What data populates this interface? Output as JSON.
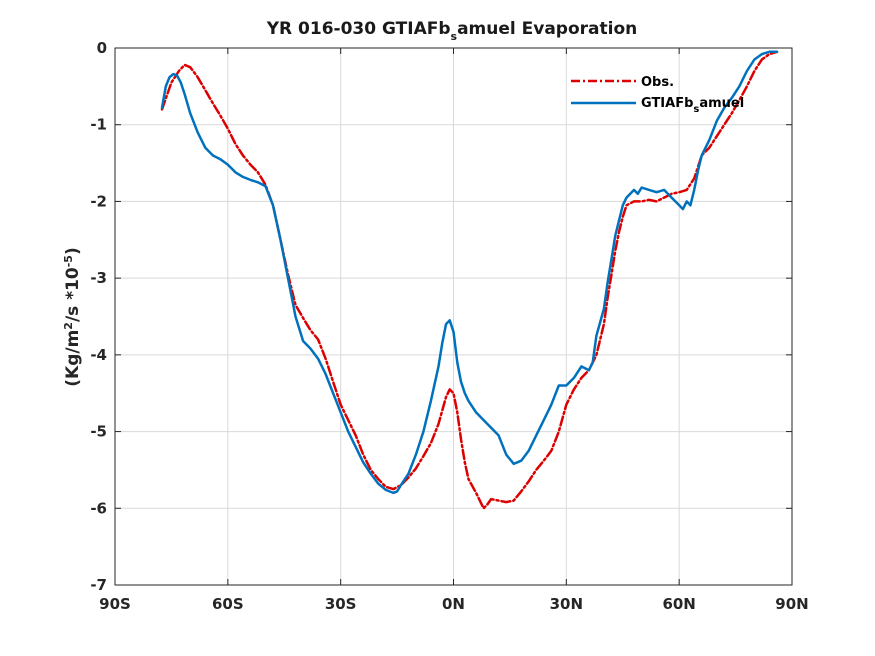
{
  "chart_data": {
    "type": "line",
    "title_main": "YR 016-030 GTIAFb",
    "title_sub": "s",
    "title_rest": "amuel Evaporation",
    "ylabel_pre": "(Kg/m",
    "ylabel_sup1": "2",
    "ylabel_mid": "/s *10",
    "ylabel_sup2": "-5",
    "ylabel_post": ")",
    "xlim": [
      -90,
      90
    ],
    "ylim": [
      -7,
      0
    ],
    "x_ticks": [
      -90,
      -60,
      -30,
      0,
      30,
      60,
      90
    ],
    "x_tick_labels": [
      "90S",
      "60S",
      "30S",
      "0N",
      "30N",
      "60N",
      "90N"
    ],
    "y_ticks": [
      0,
      -1,
      -2,
      -3,
      -4,
      -5,
      -6,
      -7
    ],
    "y_tick_labels": [
      "0",
      "-1",
      "-2",
      "-3",
      "-4",
      "-5",
      "-6",
      "-7"
    ],
    "grid": true,
    "legend_position": "top-right",
    "series": [
      {
        "name": "Obs.",
        "color": "#dd0000",
        "style": "dashdot",
        "legend_main": "Obs.",
        "x": [
          -77.5,
          -75,
          -73,
          -71.5,
          -70,
          -68,
          -66,
          -64,
          -62,
          -60,
          -58,
          -56,
          -54,
          -52,
          -50,
          -48,
          -46,
          -44,
          -42,
          -40,
          -38,
          -36,
          -34,
          -32,
          -30,
          -28,
          -26,
          -24,
          -22,
          -20,
          -18,
          -16,
          -14,
          -12,
          -10,
          -8,
          -6,
          -4,
          -2,
          -1,
          0,
          1,
          2,
          3,
          4,
          6,
          8,
          9,
          10,
          12,
          14,
          16,
          18,
          20,
          22,
          24,
          26,
          28,
          30,
          32,
          34,
          36,
          38,
          40,
          41,
          42,
          43,
          44,
          45,
          46,
          48,
          50,
          52,
          54,
          56,
          58,
          60,
          62,
          64,
          65,
          66,
          68,
          70,
          72,
          74,
          76,
          78,
          80,
          82,
          84,
          86
        ],
        "values": [
          -0.8,
          -0.45,
          -0.3,
          -0.22,
          -0.25,
          -0.38,
          -0.55,
          -0.72,
          -0.88,
          -1.05,
          -1.25,
          -1.4,
          -1.52,
          -1.62,
          -1.78,
          -2.05,
          -2.5,
          -2.95,
          -3.35,
          -3.52,
          -3.68,
          -3.8,
          -4.05,
          -4.35,
          -4.65,
          -4.85,
          -5.05,
          -5.3,
          -5.5,
          -5.62,
          -5.72,
          -5.75,
          -5.7,
          -5.6,
          -5.48,
          -5.32,
          -5.15,
          -4.9,
          -4.55,
          -4.45,
          -4.5,
          -4.75,
          -5.1,
          -5.4,
          -5.62,
          -5.8,
          -6.0,
          -5.95,
          -5.88,
          -5.9,
          -5.92,
          -5.9,
          -5.78,
          -5.65,
          -5.5,
          -5.38,
          -5.25,
          -5.0,
          -4.65,
          -4.45,
          -4.3,
          -4.2,
          -4.0,
          -3.6,
          -3.25,
          -2.95,
          -2.65,
          -2.4,
          -2.2,
          -2.05,
          -2.0,
          -2.0,
          -1.98,
          -2.0,
          -1.95,
          -1.9,
          -1.88,
          -1.85,
          -1.7,
          -1.55,
          -1.4,
          -1.3,
          -1.15,
          -1.0,
          -0.85,
          -0.68,
          -0.5,
          -0.3,
          -0.15,
          -0.08,
          -0.05
        ]
      },
      {
        "name": "GTIAFb samuel",
        "color": "#0072bd",
        "style": "solid",
        "legend_main": "GTIAFb",
        "legend_sub": "s",
        "legend_rest": "amuel",
        "x": [
          -77.5,
          -76.5,
          -75.5,
          -74.5,
          -73.5,
          -72.5,
          -71.5,
          -70,
          -68,
          -66,
          -64,
          -62,
          -60,
          -58,
          -56,
          -54,
          -52,
          -50,
          -48,
          -46,
          -44,
          -42,
          -40,
          -38,
          -36,
          -34,
          -32,
          -30,
          -28,
          -26,
          -24,
          -22,
          -20,
          -18,
          -16,
          -15,
          -14,
          -12,
          -10,
          -8,
          -6,
          -4,
          -3,
          -2,
          -1,
          0,
          1,
          2,
          3,
          4,
          6,
          8,
          10,
          12,
          14,
          16,
          17,
          18,
          20,
          22,
          24,
          26,
          28,
          30,
          32,
          34,
          36,
          37,
          38,
          40,
          41,
          42,
          43,
          44,
          45,
          46,
          48,
          49,
          50,
          52,
          54,
          56,
          58,
          60,
          61,
          62,
          63,
          64,
          65,
          66,
          68,
          70,
          72,
          74,
          76,
          78,
          80,
          82,
          84,
          86
        ],
        "values": [
          -0.78,
          -0.5,
          -0.38,
          -0.34,
          -0.36,
          -0.45,
          -0.6,
          -0.85,
          -1.1,
          -1.3,
          -1.4,
          -1.45,
          -1.52,
          -1.62,
          -1.68,
          -1.72,
          -1.75,
          -1.8,
          -2.05,
          -2.5,
          -3.0,
          -3.5,
          -3.82,
          -3.92,
          -4.05,
          -4.25,
          -4.5,
          -4.75,
          -5.0,
          -5.2,
          -5.4,
          -5.55,
          -5.68,
          -5.76,
          -5.8,
          -5.78,
          -5.7,
          -5.55,
          -5.3,
          -5.0,
          -4.6,
          -4.15,
          -3.85,
          -3.6,
          -3.55,
          -3.7,
          -4.1,
          -4.35,
          -4.5,
          -4.6,
          -4.75,
          -4.85,
          -4.95,
          -5.05,
          -5.3,
          -5.42,
          -5.4,
          -5.38,
          -5.25,
          -5.05,
          -4.85,
          -4.65,
          -4.4,
          -4.4,
          -4.3,
          -4.15,
          -4.2,
          -4.1,
          -3.75,
          -3.4,
          -3.05,
          -2.75,
          -2.45,
          -2.25,
          -2.05,
          -1.95,
          -1.85,
          -1.9,
          -1.82,
          -1.85,
          -1.88,
          -1.85,
          -1.95,
          -2.05,
          -2.1,
          -2.0,
          -2.05,
          -1.85,
          -1.6,
          -1.4,
          -1.2,
          -0.95,
          -0.78,
          -0.65,
          -0.5,
          -0.3,
          -0.15,
          -0.08,
          -0.05,
          -0.05
        ]
      }
    ]
  }
}
